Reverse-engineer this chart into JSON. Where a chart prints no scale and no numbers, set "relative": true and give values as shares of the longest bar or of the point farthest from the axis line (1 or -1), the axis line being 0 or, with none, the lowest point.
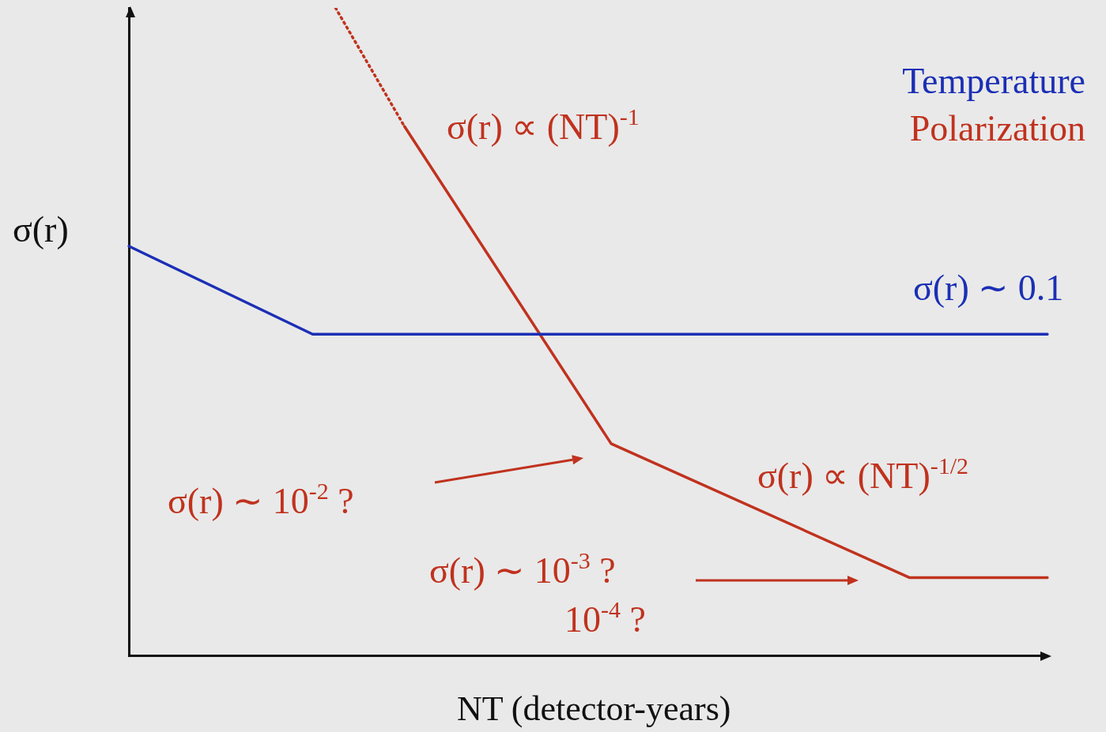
{
  "chart_data": {
    "type": "line",
    "relative": true,
    "xlabel": "NT (detector-years)",
    "ylabel": "σ(r)",
    "grid": false,
    "marker": "none",
    "categories": [
      null,
      null,
      null,
      null,
      null,
      null,
      null,
      null,
      null,
      null,
      null,
      null,
      null,
      null,
      null,
      null,
      null,
      null,
      null,
      null,
      null,
      null,
      null,
      null,
      null,
      null,
      null,
      null,
      null,
      null,
      null,
      null,
      null,
      null,
      null,
      null,
      null,
      null,
      null,
      null,
      null
    ],
    "series": [
      {
        "name": "Temperature",
        "color": "#1b2fb5",
        "values": [
          0.632,
          null,
          null,
          null,
          null,
          null,
          null,
          null,
          0.496,
          null,
          null,
          null,
          null,
          null,
          null,
          null,
          null,
          null,
          null,
          null,
          null,
          null,
          null,
          null,
          null,
          null,
          null,
          null,
          null,
          null,
          null,
          null,
          null,
          null,
          null,
          null,
          null,
          null,
          null,
          null,
          0.496
        ]
      },
      {
        "name": "Polarization",
        "color": "#c0321e",
        "values": [
          null,
          null,
          null,
          null,
          null,
          null,
          null,
          null,
          null,
          null,
          null,
          null,
          0.817,
          null,
          null,
          null,
          null,
          null,
          null,
          null,
          null,
          0.327,
          null,
          null,
          null,
          null,
          null,
          null,
          null,
          null,
          null,
          null,
          null,
          null,
          0.12,
          null,
          null,
          null,
          null,
          null,
          0.12
        ]
      },
      {
        "color": "#c0321e",
        "line_style": "dotted",
        "values": [
          null,
          null,
          null,
          null,
          null,
          null,
          null,
          null,
          null,
          1.0,
          null,
          null,
          0.817,
          null,
          null,
          null,
          null,
          null,
          null,
          null,
          null,
          null,
          null,
          null,
          null,
          null,
          null,
          null,
          null,
          null,
          null,
          null,
          null,
          null,
          null,
          null,
          null,
          null,
          null,
          null,
          null
        ]
      }
    ],
    "annotations": [
      "σ(r) ∝ (NT)$^{-1}$",
      "σ(r) ∼ 0.1",
      "σ(r) ∝ (NT)$^{-1/2}$",
      "σ(r) ∼ 10$^{-2}$ ?",
      "σ(r) ∼ 10$^{-3}$ ?",
      "10$^{-4}$ ?"
    ]
  }
}
